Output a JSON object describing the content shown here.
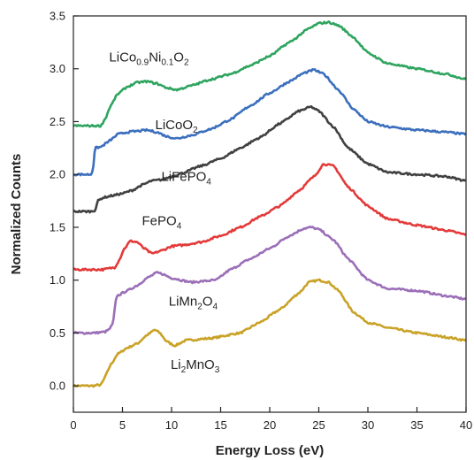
{
  "chart_data": {
    "type": "line",
    "xlabel": "Energy Loss (eV)",
    "ylabel": "Normalized Counts",
    "xlim": [
      0,
      40
    ],
    "ylim": [
      -0.25,
      3.5
    ],
    "xticks": [
      0,
      5,
      10,
      15,
      20,
      25,
      30,
      35,
      40
    ],
    "yticks": [
      0.0,
      0.5,
      1.0,
      1.5,
      2.0,
      2.5,
      3.0,
      3.5
    ],
    "ytick_labels": [
      "0.0",
      "0.5",
      "1.0",
      "1.5",
      "2.0",
      "2.5",
      "3.0",
      "3.5"
    ],
    "grid": false,
    "series": [
      {
        "name": "Li2MnO3",
        "label_parts": [
          [
            "Li",
            ""
          ],
          [
            "2",
            "sub"
          ],
          [
            "MnO",
            ""
          ],
          [
            "3",
            "sub"
          ]
        ],
        "label_at": [
          12.4,
          0.16
        ],
        "color": "#c9a227",
        "x": [
          0,
          2,
          2.8,
          3.0,
          3.3,
          3.8,
          4.5,
          5.5,
          6.5,
          7.5,
          8.3,
          8.8,
          9.5,
          10.3,
          11.5,
          14,
          17,
          19,
          21,
          23,
          24,
          25,
          26,
          27,
          28.5,
          30,
          32,
          35,
          38,
          40
        ],
        "y": [
          0.0,
          0.0,
          0.01,
          0.04,
          0.1,
          0.2,
          0.3,
          0.36,
          0.4,
          0.48,
          0.53,
          0.5,
          0.42,
          0.38,
          0.43,
          0.45,
          0.5,
          0.6,
          0.72,
          0.88,
          0.98,
          1.0,
          0.98,
          0.9,
          0.7,
          0.6,
          0.55,
          0.5,
          0.46,
          0.43
        ]
      },
      {
        "name": "LiMn2O4",
        "label_parts": [
          [
            "LiMn",
            ""
          ],
          [
            "2",
            "sub"
          ],
          [
            "O",
            ""
          ],
          [
            "4",
            "sub"
          ]
        ],
        "label_at": [
          12.2,
          0.76
        ],
        "color": "#9b6fb8",
        "x": [
          0,
          2,
          3.2,
          3.6,
          4.0,
          4.4,
          5.5,
          6.5,
          7.5,
          8.5,
          9.0,
          10,
          12,
          14.5,
          16,
          18,
          20,
          22,
          23.5,
          24.2,
          25,
          26.5,
          28,
          30,
          32,
          35,
          38,
          40
        ],
        "y": [
          0.5,
          0.5,
          0.51,
          0.53,
          0.58,
          0.85,
          0.9,
          0.95,
          1.02,
          1.07,
          1.06,
          1.02,
          0.98,
          1.0,
          1.1,
          1.2,
          1.3,
          1.42,
          1.49,
          1.5,
          1.48,
          1.38,
          1.2,
          1.0,
          0.92,
          0.9,
          0.85,
          0.82
        ]
      },
      {
        "name": "FePO4",
        "label_parts": [
          [
            "FePO",
            ""
          ],
          [
            "4",
            "sub"
          ]
        ],
        "label_at": [
          9.0,
          1.52
        ],
        "color": "#e33a3a",
        "x": [
          0,
          3,
          4.2,
          4.6,
          5.2,
          5.8,
          6.5,
          7.2,
          8,
          9,
          10,
          11,
          13,
          15,
          17,
          19,
          21,
          23,
          24.5,
          25.5,
          26.5,
          28,
          30,
          32,
          35,
          38,
          40
        ],
        "y": [
          1.1,
          1.1,
          1.12,
          1.18,
          1.3,
          1.37,
          1.36,
          1.3,
          1.25,
          1.28,
          1.32,
          1.33,
          1.36,
          1.42,
          1.5,
          1.6,
          1.7,
          1.85,
          1.98,
          2.1,
          2.08,
          1.88,
          1.7,
          1.58,
          1.52,
          1.47,
          1.43
        ]
      },
      {
        "name": "LiFePO4",
        "label_parts": [
          [
            "LiFePO",
            ""
          ],
          [
            "4",
            "sub"
          ]
        ],
        "label_at": [
          11.5,
          1.94
        ],
        "color": "#404040",
        "x": [
          0,
          1.8,
          2.2,
          2.5,
          3,
          4,
          5,
          6,
          7,
          8,
          9,
          10,
          11,
          13,
          15,
          17,
          19,
          21,
          23,
          24.2,
          25,
          26.5,
          28,
          30,
          32,
          35,
          38,
          40
        ],
        "y": [
          1.65,
          1.65,
          1.66,
          1.75,
          1.78,
          1.8,
          1.82,
          1.85,
          1.9,
          1.94,
          1.95,
          1.98,
          2.01,
          2.08,
          2.15,
          2.25,
          2.35,
          2.48,
          2.6,
          2.64,
          2.6,
          2.45,
          2.25,
          2.1,
          2.02,
          2.0,
          1.98,
          1.94
        ]
      },
      {
        "name": "LiCoO2",
        "label_parts": [
          [
            "LiCoO",
            ""
          ],
          [
            "2",
            "sub"
          ]
        ],
        "label_at": [
          10.5,
          2.43
        ],
        "color": "#3b6fbd",
        "x": [
          0,
          1.8,
          2.0,
          2.2,
          2.8,
          3.4,
          4.0,
          4.5,
          5.5,
          6.5,
          7.5,
          8.5,
          9.5,
          10.5,
          12,
          14,
          16,
          18,
          20,
          22,
          23.5,
          24.5,
          25.5,
          27,
          28.5,
          30,
          32,
          35,
          38,
          40
        ],
        "y": [
          2.0,
          2.0,
          2.05,
          2.25,
          2.26,
          2.3,
          2.34,
          2.38,
          2.4,
          2.41,
          2.42,
          2.4,
          2.36,
          2.34,
          2.37,
          2.43,
          2.52,
          2.65,
          2.77,
          2.88,
          2.96,
          2.99,
          2.95,
          2.8,
          2.62,
          2.5,
          2.45,
          2.42,
          2.4,
          2.38
        ]
      },
      {
        "name": "LiCo0.9Ni0.1O2",
        "label_parts": [
          [
            "LiCo",
            ""
          ],
          [
            "0.9",
            "sub"
          ],
          [
            "Ni",
            ""
          ],
          [
            "0.1",
            "sub"
          ],
          [
            "O",
            ""
          ],
          [
            "2",
            "sub"
          ]
        ],
        "label_at": [
          7.7,
          3.07
        ],
        "color": "#2fa45f",
        "x": [
          0,
          2.8,
          3.2,
          3.8,
          4.5,
          5.5,
          6.5,
          7.5,
          8.5,
          9.5,
          10.5,
          12,
          14,
          16,
          18,
          20,
          22,
          24,
          25,
          26,
          27,
          28.5,
          30,
          32,
          35,
          38,
          40
        ],
        "y": [
          2.46,
          2.46,
          2.52,
          2.65,
          2.76,
          2.83,
          2.87,
          2.88,
          2.86,
          2.82,
          2.8,
          2.84,
          2.9,
          2.95,
          3.03,
          3.12,
          3.25,
          3.38,
          3.43,
          3.44,
          3.41,
          3.3,
          3.15,
          3.05,
          3.0,
          2.95,
          2.9
        ]
      }
    ]
  }
}
